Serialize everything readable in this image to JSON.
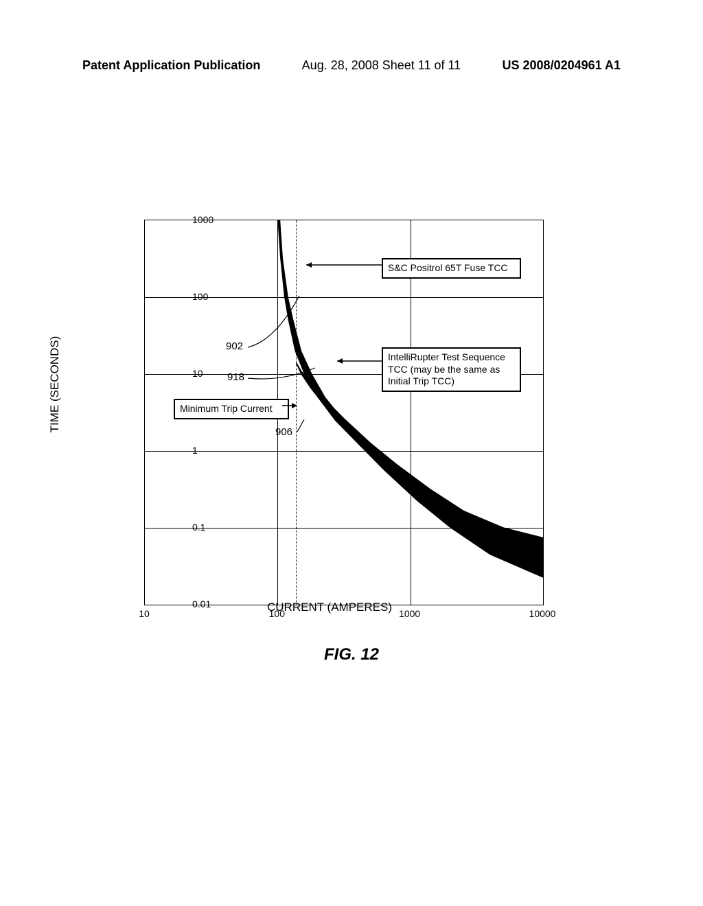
{
  "header": {
    "left": "Patent Application Publication",
    "center": "Aug. 28, 2008  Sheet 11 of 11",
    "right": "US 2008/0204961 A1"
  },
  "figure": {
    "caption": "FIG. 12",
    "ylabel": "TIME (SECONDS)",
    "xlabel": "CURRENT (AMPERES)",
    "xticks": [
      "10",
      "100",
      "1000",
      "10000"
    ],
    "yticks": [
      "0.01",
      "0.1",
      "1",
      "10",
      "100",
      "1000"
    ],
    "x_log_min": 1,
    "x_log_max": 4,
    "y_log_min": -2,
    "y_log_max": 3,
    "background": "#ffffff",
    "axis_color": "#000000",
    "grid_color": "#000000",
    "min_trip_current_log": 2.14,
    "annotations": {
      "fuse_tcc": "S&C Positrol 65T Fuse TCC",
      "test_seq": "IntelliRupter Test Sequence TCC (may be the same as Initial Trip TCC)",
      "min_trip": "Minimum Trip Current"
    },
    "refs": {
      "r902": "902",
      "r918": "918",
      "r906": "906"
    },
    "curve_fuse_upper": [
      [
        2.02,
        3.0
      ],
      [
        2.04,
        2.5
      ],
      [
        2.08,
        2.0
      ],
      [
        2.12,
        1.7
      ],
      [
        2.18,
        1.3
      ],
      [
        2.26,
        1.0
      ],
      [
        2.36,
        0.7
      ],
      [
        2.5,
        0.4
      ],
      [
        2.7,
        0.1
      ],
      [
        2.9,
        -0.2
      ],
      [
        3.15,
        -0.55
      ],
      [
        3.4,
        -0.85
      ],
      [
        3.7,
        -1.1
      ],
      [
        4.0,
        -1.25
      ]
    ],
    "curve_fuse_lower": [
      [
        2.0,
        3.0
      ],
      [
        2.02,
        2.5
      ],
      [
        2.05,
        2.0
      ],
      [
        2.08,
        1.7
      ],
      [
        2.13,
        1.3
      ],
      [
        2.2,
        1.0
      ],
      [
        2.3,
        0.7
      ],
      [
        2.43,
        0.4
      ],
      [
        2.6,
        0.1
      ],
      [
        2.8,
        -0.25
      ],
      [
        3.05,
        -0.65
      ],
      [
        3.3,
        -1.0
      ],
      [
        3.6,
        -1.35
      ],
      [
        4.0,
        -1.65
      ]
    ],
    "curve_test_upper": [
      [
        2.14,
        1.15
      ],
      [
        2.18,
        1.03
      ],
      [
        2.25,
        0.88
      ],
      [
        2.35,
        0.68
      ],
      [
        2.5,
        0.42
      ],
      [
        2.7,
        0.1
      ],
      [
        2.9,
        -0.18
      ],
      [
        3.15,
        -0.5
      ],
      [
        3.4,
        -0.78
      ],
      [
        3.7,
        -1.0
      ],
      [
        4.0,
        -1.13
      ]
    ],
    "curve_test_lower": [
      [
        2.14,
        1.15
      ],
      [
        2.18,
        1.0
      ],
      [
        2.25,
        0.82
      ],
      [
        2.35,
        0.6
      ],
      [
        2.5,
        0.33
      ],
      [
        2.7,
        0.0
      ],
      [
        2.9,
        -0.3
      ],
      [
        3.15,
        -0.65
      ],
      [
        3.4,
        -0.95
      ],
      [
        3.7,
        -1.25
      ],
      [
        4.0,
        -1.5
      ]
    ]
  }
}
